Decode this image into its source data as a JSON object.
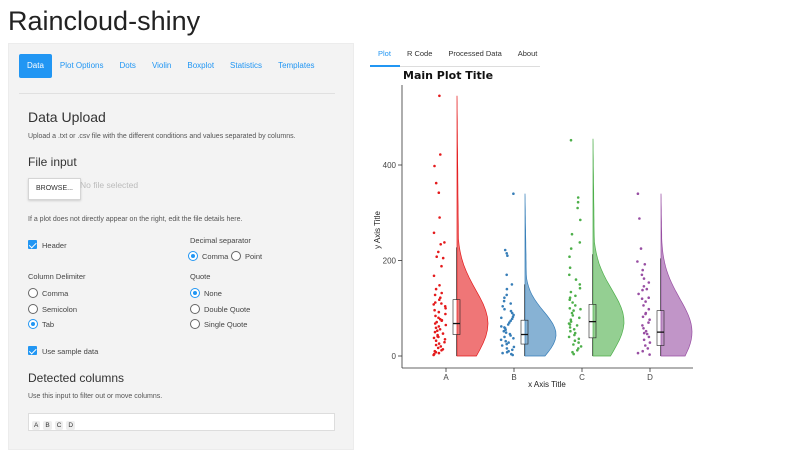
{
  "app": {
    "title": "Raincloud-shiny"
  },
  "left_tabs": [
    "Data",
    "Plot Options",
    "Dots",
    "Violin",
    "Boxplot",
    "Statistics",
    "Templates"
  ],
  "data_upload": {
    "heading": "Data Upload",
    "description": "Upload a .txt or .csv file with the different conditions and values separated by columns.",
    "file_input_heading": "File input",
    "browse_label": "BROWSE...",
    "no_file": "No file selected",
    "hint": "If a plot does not directly appear on the right, edit the file details here.",
    "header_label": "Header",
    "decimal_label": "Decimal separator",
    "decimal_options": [
      "Comma",
      "Point"
    ],
    "decimal_selected": "Comma",
    "delimiter_label": "Column Delimiter",
    "delimiter_options": [
      "Comma",
      "Semicolon",
      "Tab"
    ],
    "delimiter_selected": "Tab",
    "quote_label": "Quote",
    "quote_options": [
      "None",
      "Double Quote",
      "Single Quote"
    ],
    "quote_selected": "None",
    "sample_label": "Use sample data",
    "detected_heading": "Detected columns",
    "detected_hint": "Use this input to filter out or move columns.",
    "detected_columns": [
      "A",
      "B",
      "C",
      "D"
    ]
  },
  "right_tabs": [
    "Plot",
    "R Code",
    "Processed Data",
    "About"
  ],
  "right_active": "Plot",
  "colors": {
    "accent": "#2196f3",
    "A": "#e41a1c",
    "B": "#377eb8",
    "C": "#4daf4a",
    "D": "#984ea3"
  },
  "chart_data": {
    "type": "raincloud",
    "title": "Main Plot Title",
    "xlabel": "x Axis Title",
    "ylabel": "y Axis Title",
    "categories": [
      "A",
      "B",
      "C",
      "D"
    ],
    "yticks": [
      0,
      200,
      400
    ],
    "ylim": [
      -25,
      570
    ],
    "boxes": [
      {
        "name": "A",
        "q1": 45,
        "median": 68,
        "q3": 118,
        "whisker_low": 0,
        "whisker_high": 545
      },
      {
        "name": "B",
        "q1": 25,
        "median": 45,
        "q3": 75,
        "whisker_low": 0,
        "whisker_high": 340
      },
      {
        "name": "C",
        "q1": 38,
        "median": 72,
        "q3": 108,
        "whisker_low": 0,
        "whisker_high": 455
      },
      {
        "name": "D",
        "q1": 22,
        "median": 50,
        "q3": 95,
        "whisker_low": 0,
        "whisker_high": 340
      }
    ],
    "points": {
      "A": [
        545,
        422,
        398,
        362,
        342,
        290,
        258,
        238,
        234,
        218,
        208,
        205,
        188,
        168,
        148,
        140,
        132,
        128,
        122,
        118,
        112,
        108,
        104,
        100,
        96,
        92,
        88,
        84,
        80,
        77,
        74,
        71,
        68,
        65,
        62,
        59,
        56,
        53,
        50,
        47,
        44,
        41,
        38,
        35,
        32,
        29,
        26,
        23,
        20,
        17,
        14,
        12,
        10,
        8,
        6,
        4,
        2,
        40,
        75,
        110
      ],
      "B": [
        340,
        222,
        215,
        210,
        170,
        150,
        140,
        128,
        122,
        115,
        110,
        104,
        98,
        94,
        90,
        86,
        82,
        78,
        74,
        70,
        66,
        62,
        58,
        55,
        52,
        49,
        46,
        43,
        40,
        37,
        34,
        31,
        28,
        25,
        22,
        19,
        16,
        13,
        10,
        8,
        6,
        4,
        2,
        60,
        80
      ],
      "C": [
        452,
        332,
        322,
        310,
        285,
        255,
        238,
        225,
        208,
        185,
        170,
        160,
        150,
        142,
        134,
        126,
        118,
        112,
        106,
        100,
        95,
        90,
        85,
        80,
        76,
        72,
        68,
        64,
        60,
        56,
        52,
        48,
        44,
        40,
        36,
        32,
        28,
        24,
        20,
        16,
        12,
        8,
        4,
        66,
        98,
        122
      ],
      "D": [
        340,
        288,
        225,
        198,
        192,
        180,
        170,
        162,
        154,
        146,
        138,
        130,
        122,
        114,
        106,
        98,
        90,
        82,
        76,
        70,
        64,
        58,
        52,
        46,
        40,
        34,
        28,
        22,
        16,
        10,
        6,
        3,
        48,
        88,
        120,
        140
      ]
    }
  }
}
